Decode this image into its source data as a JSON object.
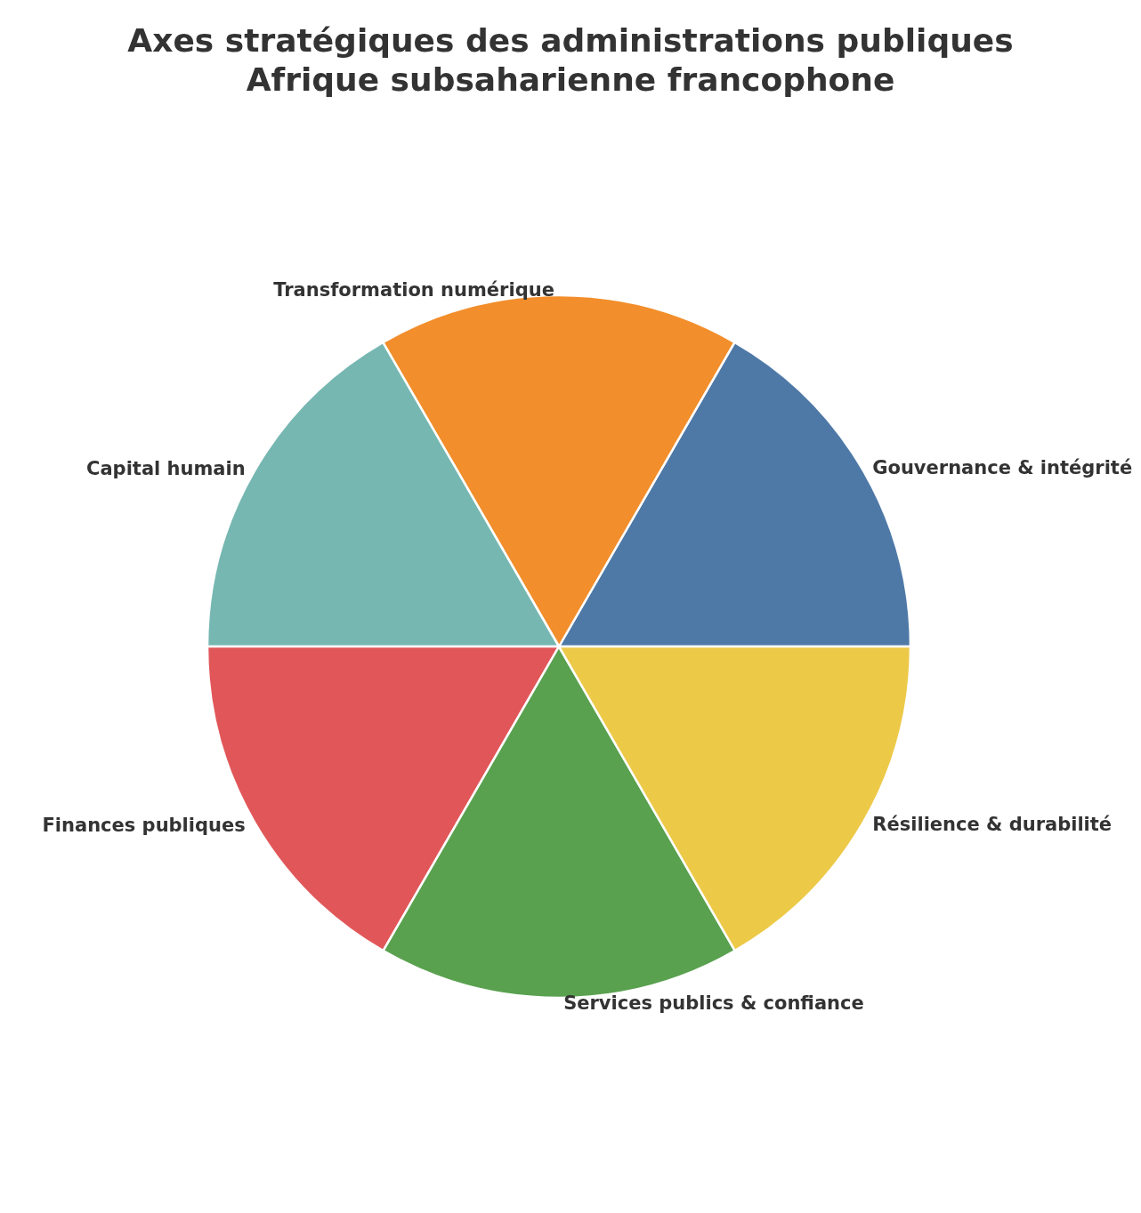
{
  "chart_data": {
    "type": "pie",
    "title": "Axes stratégiques des administrations publiques\nAfrique subsaharienne francophone",
    "categories": [
      "Gouvernance & intégrité",
      "Transformation numérique",
      "Capital humain",
      "Finances publiques",
      "Services publics & confiance",
      "Résilience & durabilité"
    ],
    "values": [
      16.67,
      16.67,
      16.66,
      16.67,
      16.67,
      16.66
    ],
    "colors": [
      "#4e79a7",
      "#f28e2b",
      "#76b7b2",
      "#e15759",
      "#59a14f",
      "#edc948"
    ]
  }
}
